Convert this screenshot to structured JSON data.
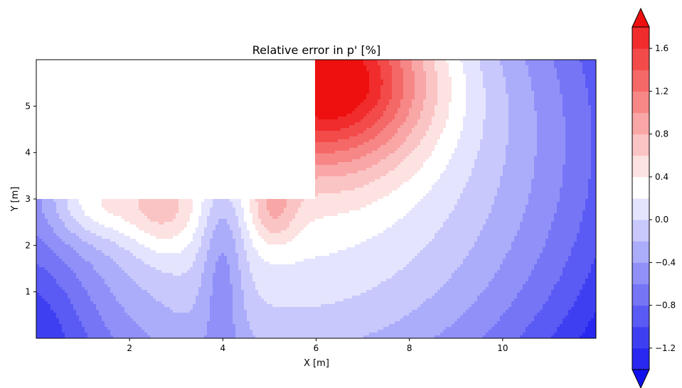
{
  "chart_data": {
    "type": "heatmap",
    "title": "Relative error in p'  [%]",
    "xlabel": "X [m]",
    "ylabel": "Y [m]",
    "xlim": [
      0,
      12
    ],
    "ylim": [
      0,
      6
    ],
    "x_ticks": [
      2,
      4,
      6,
      8,
      10
    ],
    "y_ticks": [
      1,
      2,
      3,
      4,
      5
    ],
    "grid": false,
    "masked_region": {
      "x": [
        0,
        6
      ],
      "y": [
        3,
        6
      ]
    },
    "colorbar": {
      "levels": [
        -1.4,
        -1.2,
        -1.0,
        -0.8,
        -0.6,
        -0.4,
        -0.2,
        0.0,
        0.2,
        0.4,
        0.6,
        0.8,
        1.0,
        1.2,
        1.4,
        1.6,
        1.8
      ],
      "colors": [
        "#1111ee",
        "#2828f0",
        "#3f3ff2",
        "#5a5af4",
        "#7575f6",
        "#9090f8",
        "#abacfa",
        "#c8c8fc",
        "#e4e4fe",
        "#ffffff",
        "#fde2e2",
        "#fbc4c4",
        "#f9a6a6",
        "#f78787",
        "#f56868",
        "#f34a4a",
        "#f12c2c",
        "#ee0f0f"
      ],
      "ticks": [
        "−1.2",
        "−0.8",
        "−0.4",
        "0.0",
        "0.4",
        "0.8",
        "1.2",
        "1.6"
      ],
      "tick_values": [
        -1.2,
        -0.8,
        -0.4,
        0.0,
        0.4,
        0.8,
        1.2,
        1.6
      ],
      "extend": "both"
    }
  }
}
